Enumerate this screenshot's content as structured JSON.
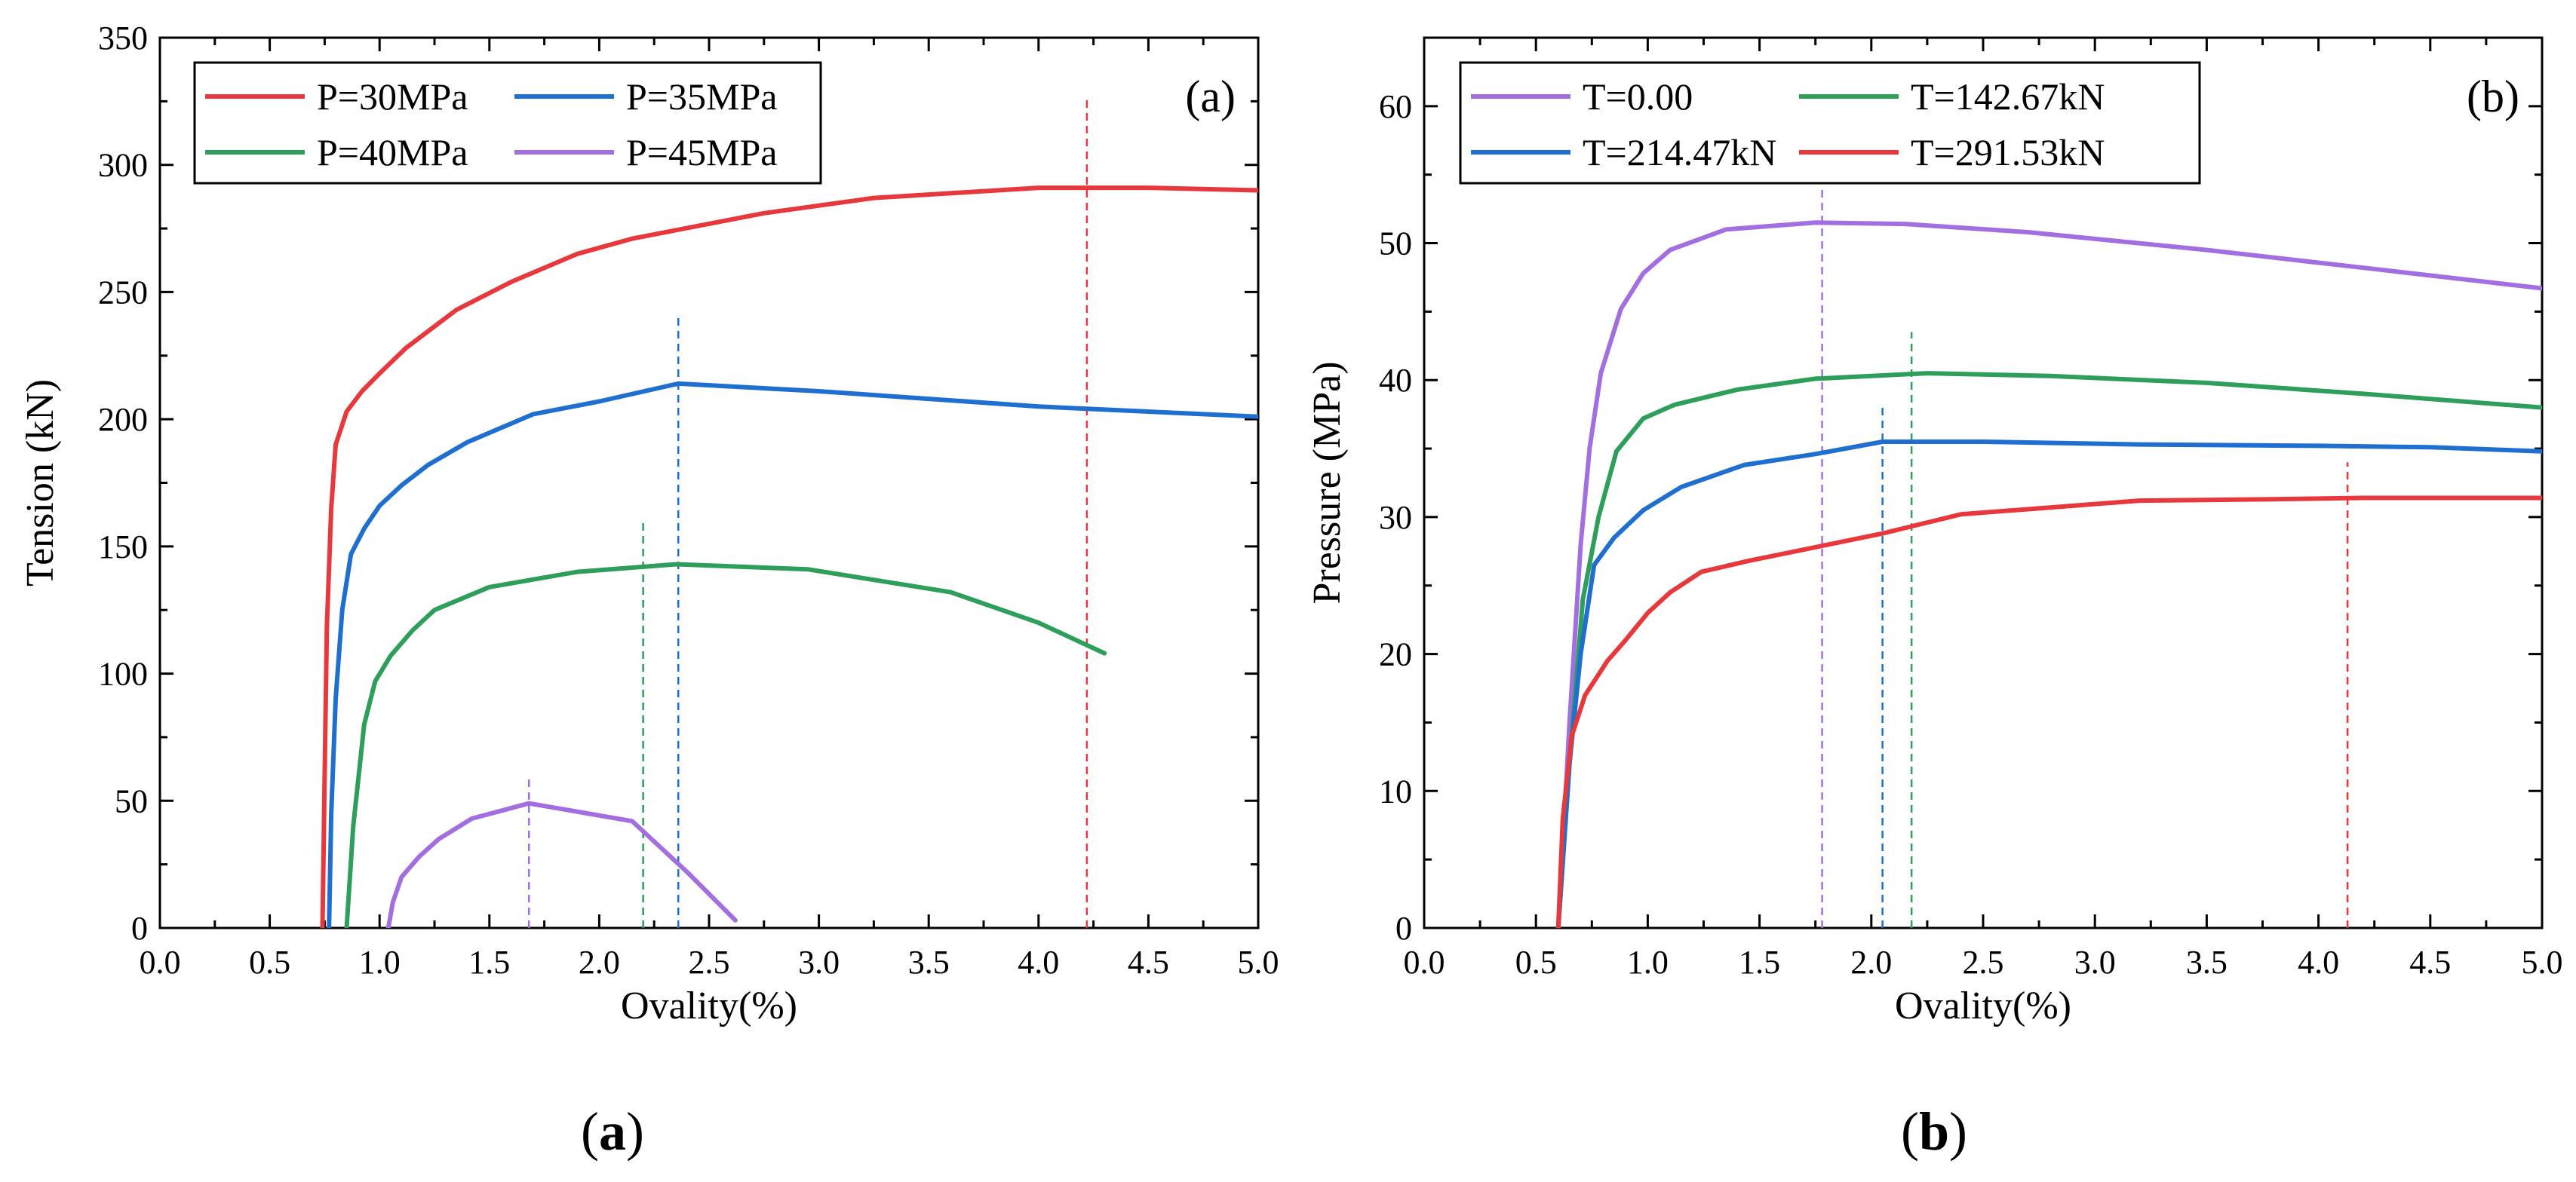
{
  "chart_data": [
    {
      "type": "line",
      "panel_label": "(a)",
      "xlabel": "Ovality(%)",
      "ylabel": "Tension (kN)",
      "xlim": [
        0,
        5
      ],
      "ylim": [
        0,
        350
      ],
      "xticks": [
        "0.0",
        "0.5",
        "1.0",
        "1.5",
        "2.0",
        "2.5",
        "3.0",
        "3.5",
        "4.0",
        "4.5",
        "5.0"
      ],
      "yticks": [
        "0",
        "50",
        "100",
        "150",
        "200",
        "250",
        "300",
        "350"
      ],
      "legend_position": "top-left",
      "legend_columns": 2,
      "series": [
        {
          "name": "P=30MPa",
          "color": "#E8383B",
          "x": [
            0.74,
            0.75,
            0.76,
            0.78,
            0.8,
            0.85,
            0.92,
            1.0,
            1.12,
            1.35,
            1.6,
            1.9,
            2.15,
            2.45,
            2.75,
            3.25,
            4.0,
            4.5,
            5.0
          ],
          "y": [
            0,
            60,
            118,
            165,
            190,
            203,
            211,
            218,
            228,
            243,
            254,
            265,
            271,
            276,
            281,
            287,
            291,
            291,
            290
          ]
        },
        {
          "name": "P=35MPa",
          "color": "#1E6FD0",
          "x": [
            0.77,
            0.78,
            0.8,
            0.83,
            0.87,
            0.93,
            1.0,
            1.1,
            1.22,
            1.4,
            1.7,
            2.0,
            2.36,
            3.0,
            3.5,
            4.0,
            4.5,
            5.0
          ],
          "y": [
            0,
            45,
            90,
            125,
            147,
            157,
            166,
            174,
            182,
            191,
            202,
            207,
            214,
            211,
            208,
            205,
            203,
            201
          ]
        },
        {
          "name": "P=40MPa",
          "color": "#2E9E5B",
          "x": [
            0.85,
            0.88,
            0.93,
            0.98,
            1.05,
            1.15,
            1.25,
            1.5,
            1.9,
            2.35,
            2.95,
            3.6,
            4.0,
            4.3
          ],
          "y": [
            0,
            40,
            80,
            97,
            107,
            117,
            125,
            134,
            140,
            143,
            141,
            132,
            120,
            108
          ]
        },
        {
          "name": "P=45MPa",
          "color": "#A36FE0",
          "x": [
            1.04,
            1.06,
            1.1,
            1.18,
            1.27,
            1.42,
            1.68,
            2.15,
            2.4,
            2.62
          ],
          "y": [
            0,
            10,
            20,
            28,
            35,
            43,
            49,
            42,
            22,
            3
          ]
        }
      ],
      "reference_lines": [
        {
          "x": 4.22,
          "y_top": 327,
          "color": "#E8383B"
        },
        {
          "x": 2.36,
          "y_top": 240,
          "color": "#1E6FD0"
        },
        {
          "x": 2.2,
          "y_top": 161,
          "color": "#2E9E5B"
        },
        {
          "x": 1.68,
          "y_top": 60,
          "color": "#A36FE0"
        }
      ],
      "caption": "(a)"
    },
    {
      "type": "line",
      "panel_label": "(b)",
      "xlabel": "Ovality(%)",
      "ylabel": "Pressure (MPa)",
      "xlim": [
        0,
        5
      ],
      "ylim": [
        0,
        65
      ],
      "xticks": [
        "0.0",
        "0.5",
        "1.0",
        "1.5",
        "2.0",
        "2.5",
        "3.0",
        "3.5",
        "4.0",
        "4.5",
        "5.0"
      ],
      "yticks": [
        "0",
        "10",
        "20",
        "30",
        "40",
        "50",
        "60"
      ],
      "legend_position": "top-left",
      "legend_columns": 2,
      "series": [
        {
          "name": "T=0.00",
          "color": "#A36FE0",
          "x": [
            0.6,
            0.65,
            0.7,
            0.74,
            0.79,
            0.88,
            0.98,
            1.1,
            1.35,
            1.75,
            2.15,
            2.7,
            3.5,
            4.2,
            5.0
          ],
          "y": [
            0,
            15,
            28,
            35,
            40.5,
            45.2,
            47.8,
            49.5,
            51,
            51.5,
            51.4,
            50.8,
            49.5,
            48.2,
            46.7
          ]
        },
        {
          "name": "T=142.67kN",
          "color": "#2E9E5B",
          "x": [
            0.6,
            0.65,
            0.71,
            0.78,
            0.86,
            0.98,
            1.12,
            1.4,
            1.75,
            2.25,
            2.8,
            3.5,
            4.2,
            5.0
          ],
          "y": [
            0,
            12,
            24,
            30,
            34.8,
            37.2,
            38.2,
            39.3,
            40.1,
            40.5,
            40.3,
            39.8,
            39.0,
            38.0
          ]
        },
        {
          "name": "T=214.47kN",
          "color": "#1E6FD0",
          "x": [
            0.6,
            0.65,
            0.7,
            0.76,
            0.85,
            0.98,
            1.15,
            1.43,
            1.75,
            2.05,
            2.5,
            3.2,
            4.0,
            4.5,
            5.0
          ],
          "y": [
            0,
            12,
            20,
            26.5,
            28.5,
            30.5,
            32.2,
            33.8,
            34.6,
            35.5,
            35.5,
            35.3,
            35.2,
            35.1,
            34.8
          ]
        },
        {
          "name": "T=291.53kN",
          "color": "#E8383B",
          "x": [
            0.6,
            0.62,
            0.66,
            0.72,
            0.82,
            0.9,
            1.0,
            1.1,
            1.24,
            1.45,
            1.75,
            2.05,
            2.4,
            2.8,
            3.2,
            3.8,
            4.2,
            5.0
          ],
          "y": [
            0,
            8,
            14,
            17,
            19.5,
            21,
            23,
            24.5,
            26,
            26.8,
            27.8,
            28.8,
            30.2,
            30.7,
            31.2,
            31.3,
            31.4,
            31.4
          ]
        }
      ],
      "reference_lines": [
        {
          "x": 1.78,
          "y_top": 54,
          "color": "#A36FE0"
        },
        {
          "x": 2.18,
          "y_top": 43.5,
          "color": "#2E9E5B"
        },
        {
          "x": 2.05,
          "y_top": 38,
          "color": "#1E6FD0"
        },
        {
          "x": 4.13,
          "y_top": 34,
          "color": "#E8383B"
        }
      ],
      "caption": "(b)"
    }
  ],
  "captions": {
    "a": {
      "open": "(",
      "letter": "a",
      "close": ")"
    },
    "b": {
      "open": "(",
      "letter": "b",
      "close": ")"
    }
  }
}
